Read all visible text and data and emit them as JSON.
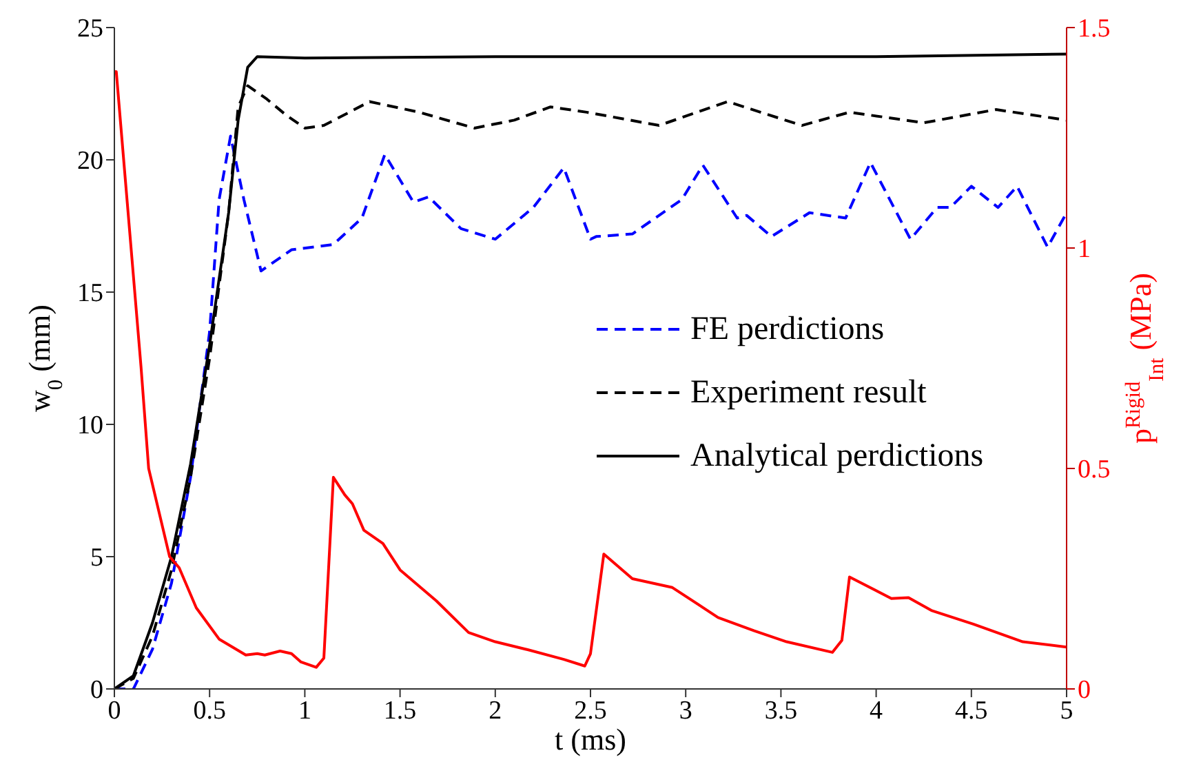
{
  "chart_data": {
    "type": "line",
    "xlabel": "t (ms)",
    "ylabel": "w$_{0}$ (mm)",
    "y2label": "p$^{Rigid}$$_{Int}$ (MPa)",
    "xlim": [
      0,
      5
    ],
    "xticks": [
      0,
      0.5,
      1,
      1.5,
      2,
      2.5,
      3,
      3.5,
      4,
      4.5,
      5
    ],
    "ylim": [
      0,
      25
    ],
    "yticks": [
      0,
      5,
      10,
      15,
      20,
      25
    ],
    "y2lim": [
      0,
      1.5
    ],
    "y2ticks": [
      0,
      0.5,
      1,
      1.5
    ],
    "grid": false,
    "legend": "right",
    "marker": "none",
    "series": [
      {
        "name": "FE perdictions",
        "color": "#0000ff",
        "line_style": "dashed",
        "x": [
          0,
          0.1,
          0.2,
          0.3,
          0.4,
          0.5,
          0.55,
          0.61,
          0.68,
          0.77,
          0.93,
          1.15,
          1.3,
          1.42,
          1.57,
          1.65,
          1.82,
          2.0,
          2.2,
          2.36,
          2.5,
          2.53,
          2.72,
          2.98,
          3.09,
          3.27,
          3.32,
          3.45,
          3.65,
          3.84,
          3.97,
          4.18,
          4.32,
          4.39,
          4.5,
          4.64,
          4.74,
          4.9,
          5.0
        ],
        "values": [
          0,
          0,
          1.5,
          4,
          8,
          13.5,
          18.5,
          20.9,
          18.5,
          15.8,
          16.6,
          16.8,
          17.8,
          20.2,
          18.4,
          18.6,
          17.4,
          17.0,
          18.2,
          19.7,
          17.0,
          17.1,
          17.2,
          18.5,
          19.8,
          17.8,
          17.9,
          17.1,
          18.0,
          17.8,
          19.9,
          17.0,
          18.2,
          18.2,
          19.0,
          18.2,
          19.0,
          16.7,
          18.0
        ]
      },
      {
        "name": "Experiment result",
        "color": "#000000",
        "line_style": "dashed",
        "x": [
          0,
          0.1,
          0.2,
          0.3,
          0.4,
          0.5,
          0.6,
          0.65,
          0.7,
          0.8,
          0.9,
          1.0,
          1.1,
          1.34,
          1.6,
          1.89,
          2.1,
          2.29,
          2.48,
          2.86,
          3.22,
          3.61,
          3.86,
          4.25,
          4.63,
          5.0
        ],
        "values": [
          0,
          0.4,
          2,
          4.5,
          8,
          12.5,
          18,
          22,
          22.8,
          22.3,
          21.7,
          21.2,
          21.3,
          22.2,
          21.8,
          21.2,
          21.5,
          22.0,
          21.8,
          21.3,
          22.2,
          21.3,
          21.8,
          21.4,
          21.9,
          21.5
        ]
      },
      {
        "name": "Analytical perdictions",
        "color": "#000000",
        "line_style": "solid",
        "x": [
          0,
          0.1,
          0.2,
          0.3,
          0.4,
          0.5,
          0.6,
          0.65,
          0.7,
          0.75,
          1,
          2,
          3,
          4,
          5
        ],
        "values": [
          0,
          0.5,
          2.5,
          5,
          8.5,
          13,
          18,
          21.5,
          23.5,
          23.9,
          23.85,
          23.9,
          23.9,
          23.9,
          24
        ]
      },
      {
        "color": "#ff0000",
        "line_style": "solid",
        "axis": "y2",
        "x": [
          0,
          0.01,
          0.14,
          0.18,
          0.29,
          0.34,
          0.43,
          0.55,
          0.69,
          0.75,
          0.79,
          0.87,
          0.93,
          0.98,
          1.06,
          1.1,
          1.15,
          1.21,
          1.25,
          1.31,
          1.41,
          1.5,
          1.69,
          1.86,
          2.0,
          2.17,
          2.36,
          2.47,
          2.5,
          2.57,
          2.72,
          2.93,
          3.17,
          3.36,
          3.53,
          3.77,
          3.82,
          3.86,
          4.08,
          4.17,
          4.29,
          4.51,
          4.77,
          5.0
        ],
        "values": [
          1.4,
          1.4,
          0.73,
          0.5,
          0.3,
          0.275,
          0.184,
          0.113,
          0.077,
          0.08,
          0.077,
          0.086,
          0.08,
          0.061,
          0.049,
          0.07,
          0.48,
          0.44,
          0.42,
          0.36,
          0.33,
          0.27,
          0.2,
          0.128,
          0.107,
          0.089,
          0.067,
          0.052,
          0.08,
          0.306,
          0.25,
          0.23,
          0.162,
          0.132,
          0.107,
          0.083,
          0.11,
          0.254,
          0.205,
          0.207,
          0.178,
          0.147,
          0.107,
          0.095
        ]
      }
    ]
  }
}
